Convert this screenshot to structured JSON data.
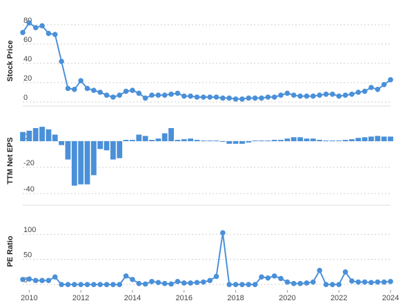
{
  "chart_data": [
    {
      "type": "line",
      "y_label": "Stock Price",
      "color": "#4a90d9",
      "x": [
        2009.75,
        2010,
        2010.25,
        2010.5,
        2010.75,
        2011,
        2011.25,
        2011.5,
        2011.75,
        2012,
        2012.25,
        2012.5,
        2012.75,
        2013,
        2013.25,
        2013.5,
        2013.75,
        2014,
        2014.25,
        2014.5,
        2014.75,
        2015,
        2015.25,
        2015.5,
        2015.75,
        2016,
        2016.25,
        2016.5,
        2016.75,
        2017,
        2017.25,
        2017.5,
        2017.75,
        2018,
        2018.25,
        2018.5,
        2018.75,
        2019,
        2019.25,
        2019.5,
        2019.75,
        2020,
        2020.25,
        2020.5,
        2020.75,
        2021,
        2021.25,
        2021.5,
        2021.75,
        2022,
        2022.25,
        2022.5,
        2022.75,
        2023,
        2023.25,
        2023.5,
        2023.75,
        2024
      ],
      "values": [
        72,
        82,
        77,
        79,
        71,
        70,
        42,
        14,
        13,
        22,
        14,
        12,
        10,
        7,
        5,
        7,
        11,
        12,
        9,
        4,
        7,
        7,
        7,
        8,
        9,
        6,
        6,
        5,
        5,
        5,
        5,
        4,
        4,
        3,
        3,
        4,
        4,
        4,
        5,
        5,
        7,
        9,
        7,
        6,
        6,
        6,
        7,
        8,
        8,
        6,
        7,
        8,
        10,
        11,
        15,
        13,
        18,
        23
      ],
      "xlim": [
        2009.75,
        2024
      ],
      "ylim": [
        0,
        85
      ],
      "yticks": [
        0,
        20,
        40,
        60,
        80
      ],
      "grid": true
    },
    {
      "type": "bar",
      "y_label": "TTM Net EPS",
      "color": "#4a90d9",
      "x": [
        2009.75,
        2010,
        2010.25,
        2010.5,
        2010.75,
        2011,
        2011.25,
        2011.5,
        2011.75,
        2012,
        2012.25,
        2012.5,
        2012.75,
        2013,
        2013.25,
        2013.5,
        2013.75,
        2014,
        2014.25,
        2014.5,
        2014.75,
        2015,
        2015.25,
        2015.5,
        2015.75,
        2016,
        2016.25,
        2016.5,
        2016.75,
        2017,
        2017.25,
        2017.5,
        2017.75,
        2018,
        2018.25,
        2018.5,
        2018.75,
        2019,
        2019.25,
        2019.5,
        2019.75,
        2020,
        2020.25,
        2020.5,
        2020.75,
        2021,
        2021.25,
        2021.5,
        2021.75,
        2022,
        2022.25,
        2022.5,
        2022.75,
        2023,
        2023.25,
        2023.5,
        2023.75,
        2024
      ],
      "values": [
        7,
        8,
        10,
        11,
        9,
        5,
        -3,
        -14,
        -34,
        -33,
        -33,
        -26,
        -6,
        -7,
        -14,
        -13,
        1,
        1,
        5,
        4,
        1,
        2,
        6,
        10,
        1,
        1.5,
        2,
        1,
        0.5,
        0.5,
        0.5,
        -0.5,
        -2,
        -2,
        -2,
        -1,
        0.5,
        0.5,
        0.5,
        1,
        1,
        2,
        3,
        3,
        2,
        2,
        1,
        0.5,
        0.5,
        0.5,
        1,
        1.5,
        2.5,
        3,
        3.5,
        4,
        3.5,
        3.5
      ],
      "xlim": [
        2009.75,
        2024
      ],
      "ylim": [
        -45,
        15
      ],
      "yticks": [
        -40,
        -20,
        0
      ],
      "grid": true
    },
    {
      "type": "line",
      "y_label": "PE Ratio",
      "color": "#4a90d9",
      "x": [
        2009.75,
        2010,
        2010.25,
        2010.5,
        2010.75,
        2011,
        2011.25,
        2011.5,
        2011.75,
        2012,
        2012.25,
        2012.5,
        2012.75,
        2013,
        2013.25,
        2013.5,
        2013.75,
        2014,
        2014.25,
        2014.5,
        2014.75,
        2015,
        2015.25,
        2015.5,
        2015.75,
        2016,
        2016.25,
        2016.5,
        2016.75,
        2017,
        2017.25,
        2017.5,
        2017.75,
        2018,
        2018.25,
        2018.5,
        2018.75,
        2019,
        2019.25,
        2019.5,
        2019.75,
        2020,
        2020.25,
        2020.5,
        2020.75,
        2021,
        2021.25,
        2021.5,
        2021.75,
        2022,
        2022.25,
        2022.5,
        2022.75,
        2023,
        2023.25,
        2023.5,
        2023.75,
        2024
      ],
      "values": [
        10,
        11,
        8,
        8,
        8,
        15,
        0,
        0,
        0,
        0,
        0,
        0,
        0,
        0,
        0,
        0,
        17,
        10,
        2,
        1,
        6,
        4,
        2,
        1,
        6,
        3,
        3,
        4,
        5,
        8,
        16,
        103,
        0,
        0,
        0,
        0,
        0,
        15,
        13,
        17,
        12,
        5,
        2,
        2,
        3,
        5,
        28,
        0,
        0,
        0,
        25,
        7,
        5,
        5,
        4,
        5,
        5,
        6
      ],
      "xlim": [
        2009.75,
        2024
      ],
      "ylim": [
        -8,
        140
      ],
      "yticks": [
        0,
        50,
        100
      ],
      "grid": true,
      "xticks": [
        2010,
        2012,
        2014,
        2016,
        2018,
        2020,
        2022,
        2024
      ]
    }
  ]
}
